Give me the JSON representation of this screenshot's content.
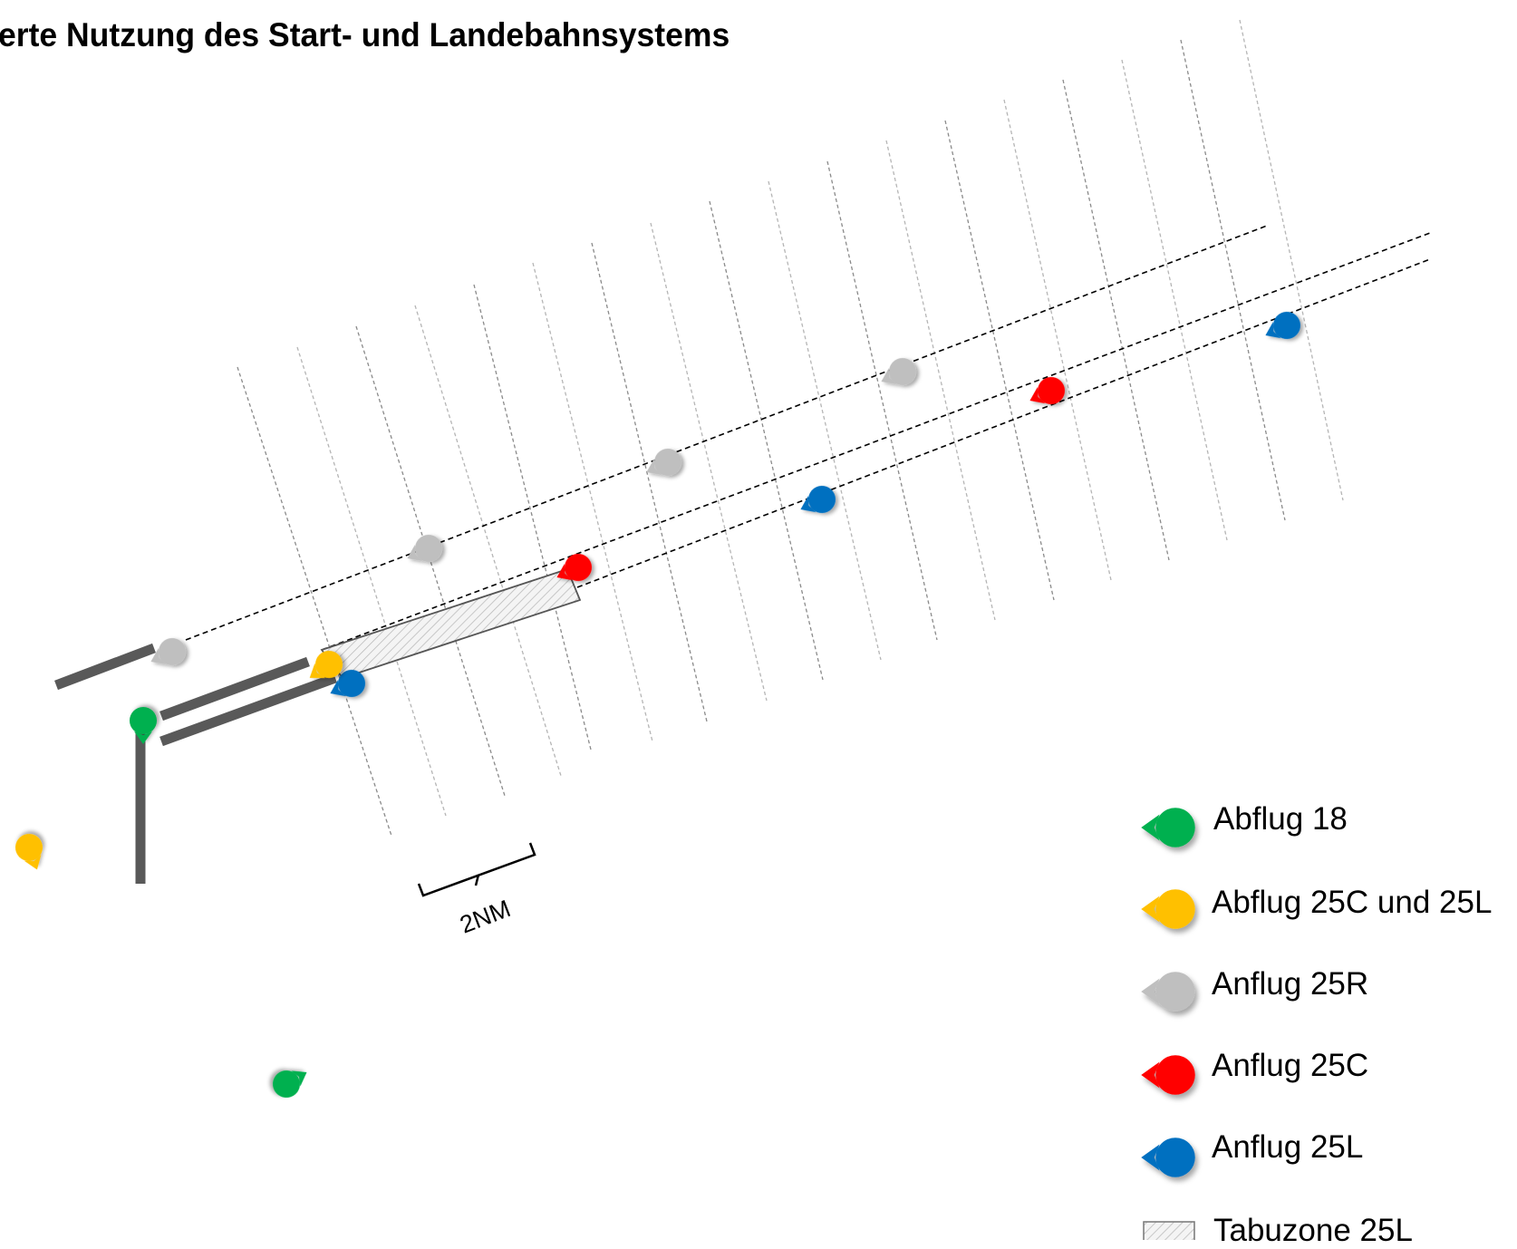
{
  "title": "erte Nutzung des Start- und Landebahnsystems",
  "scale_label": "2NM",
  "colors": {
    "abflug_18": "#00b050",
    "abflug_25c_25l": "#ffc000",
    "anflug_25r": "#bfbfbf",
    "anflug_25c": "#ff0000",
    "anflug_25l": "#0070c0",
    "runway": "#595959"
  },
  "legend": [
    {
      "key": "abflug_18",
      "label": "Abflug 18",
      "icon": "aircraft-marker-icon"
    },
    {
      "key": "abflug_25c_25l",
      "label": "Abflug 25C und 25L",
      "icon": "aircraft-marker-icon"
    },
    {
      "key": "anflug_25r",
      "label": "Anflug 25R",
      "icon": "aircraft-marker-icon"
    },
    {
      "key": "anflug_25c",
      "label": "Anflug 25C",
      "icon": "aircraft-marker-icon"
    },
    {
      "key": "anflug_25l",
      "label": "Anflug 25L",
      "icon": "aircraft-marker-icon"
    },
    {
      "key": "tabuzone",
      "label": "Tabuzone 25L",
      "icon": "hatched-zone-icon"
    }
  ]
}
